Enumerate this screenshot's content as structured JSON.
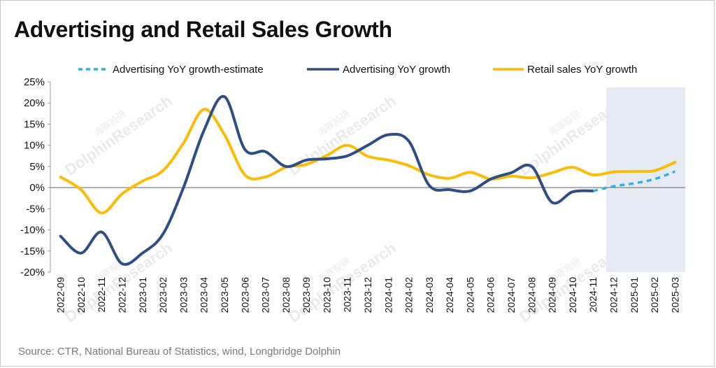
{
  "title": "Advertising and Retail Sales Growth",
  "source": "Source: CTR, National Bureau of Statistics, wind, Longbridge Dolphin",
  "watermark": [
    "海豚投研",
    "DolphinResearch"
  ],
  "colors": {
    "estimate": "#2db1ea",
    "advertising": "#2e4f86",
    "retail": "#fbbc05",
    "zero_line": "#808080",
    "shade": "#e6ebf3",
    "axis_text": "#111111"
  },
  "chart_data": {
    "type": "line",
    "title": "Advertising and Retail Sales Growth",
    "x": [
      "2022-09",
      "2022-10",
      "2022-11",
      "2022-12",
      "2023-01",
      "2023-02",
      "2023-03",
      "2023-04",
      "2023-05",
      "2023-06",
      "2023-07",
      "2023-08",
      "2023-09",
      "2023-10",
      "2023-11",
      "2023-12",
      "2024-01",
      "2024-02",
      "2024-03",
      "2024-04",
      "2024-05",
      "2024-06",
      "2024-07",
      "2024-08",
      "2024-09",
      "2024-10",
      "2024-11",
      "2024-12",
      "2025-01",
      "2025-02",
      "2025-03"
    ],
    "y_ticks": [
      "25%",
      "20%",
      "15%",
      "10%",
      "5%",
      "0%",
      "-5%",
      "-10%",
      "-15%",
      "-20%"
    ],
    "ylim": [
      -20,
      25
    ],
    "y_unit": "%",
    "legend_position": "top",
    "grid": false,
    "shaded_region": [
      "2024-12",
      "2025-03"
    ],
    "series": [
      {
        "name": "Advertising YoY growth-estimate",
        "style": "dashed",
        "color": "#2db1ea",
        "values": [
          null,
          null,
          null,
          null,
          null,
          null,
          null,
          null,
          null,
          null,
          null,
          null,
          null,
          null,
          null,
          null,
          null,
          null,
          null,
          null,
          null,
          null,
          null,
          null,
          null,
          null,
          -0.8,
          0.3,
          1.0,
          2.0,
          3.8
        ]
      },
      {
        "name": "Advertising YoY growth",
        "style": "solid",
        "color": "#2e4f86",
        "values": [
          -11.5,
          -15.5,
          -10.5,
          -18.0,
          -15.5,
          -11.0,
          0.0,
          13.5,
          21.5,
          9.0,
          8.5,
          5.0,
          6.5,
          6.8,
          7.5,
          10.0,
          12.5,
          11.0,
          0.5,
          -0.5,
          -0.8,
          2.0,
          3.5,
          5.0,
          -3.5,
          -1.0,
          -0.8,
          null,
          null,
          null,
          null
        ]
      },
      {
        "name": "Retail sales YoY growth",
        "style": "solid",
        "color": "#fbbc05",
        "values": [
          2.5,
          -0.5,
          -6.0,
          -1.5,
          1.5,
          4.0,
          10.5,
          18.5,
          12.5,
          3.0,
          2.5,
          4.8,
          5.5,
          7.6,
          10.0,
          7.4,
          6.5,
          5.2,
          3.0,
          2.2,
          3.6,
          2.0,
          2.7,
          2.3,
          3.5,
          4.8,
          3.0,
          3.7,
          3.8,
          4.0,
          6.0
        ]
      }
    ]
  }
}
